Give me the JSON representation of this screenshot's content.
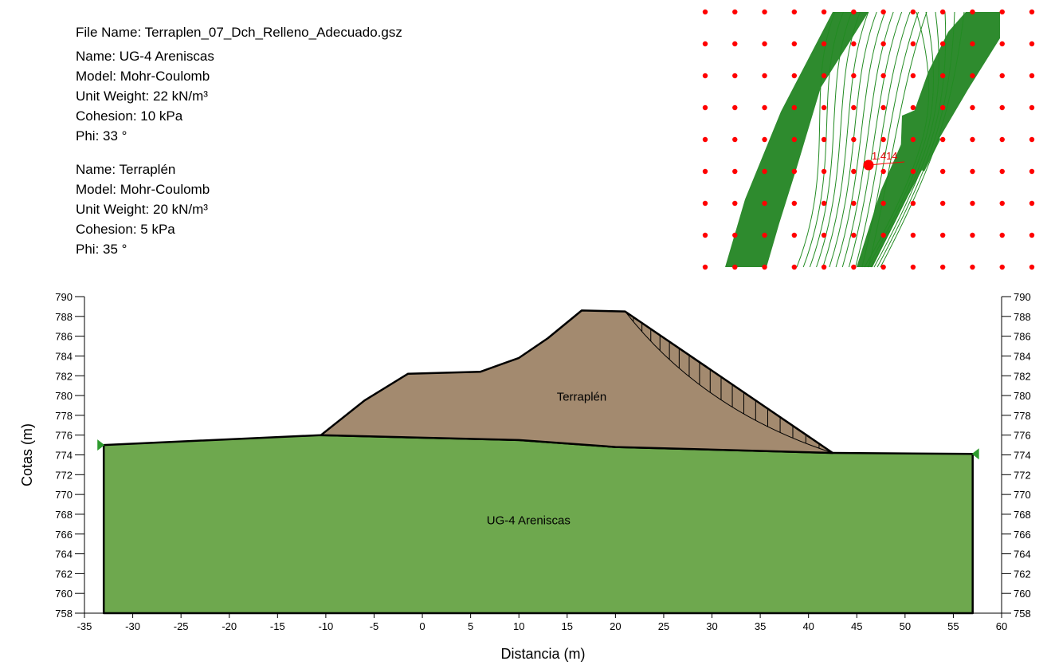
{
  "info": {
    "file_name": "File Name: Terraplen_07_Dch_Relleno_Adecuado.gsz",
    "materials": [
      {
        "name": "Name: UG-4 Areniscas",
        "model": "Model: Mohr-Coulomb",
        "unit_weight": "Unit Weight: 22 kN/m³",
        "cohesion": "Cohesion: 10 kPa",
        "phi": "Phi: 33 °"
      },
      {
        "name": "Name: Terraplén",
        "model": "Model: Mohr-Coulomb",
        "unit_weight": "Unit Weight: 20 kN/m³",
        "cohesion": "Cohesion: 5 kPa",
        "phi": "Phi: 35 °"
      }
    ]
  },
  "chart_data": {
    "type": "cross-section",
    "xlabel": "Distancia (m)",
    "ylabel": "Cotas (m)",
    "xlim": [
      -35,
      60
    ],
    "ylim": [
      758,
      790
    ],
    "x_ticks": [
      "-35",
      "-30",
      "-25",
      "-20",
      "-15",
      "-10",
      "-5",
      "0",
      "5",
      "10",
      "15",
      "20",
      "25",
      "30",
      "35",
      "40",
      "45",
      "50",
      "55",
      "60"
    ],
    "y_ticks": [
      "758",
      "760",
      "762",
      "764",
      "766",
      "768",
      "770",
      "772",
      "774",
      "776",
      "778",
      "780",
      "782",
      "784",
      "786",
      "788",
      "790"
    ],
    "regions": [
      {
        "label": "UG-4 Areniscas",
        "color": "#6ea84e",
        "points": [
          [
            -33,
            775
          ],
          [
            -10.5,
            776
          ],
          [
            10,
            775.5
          ],
          [
            20,
            774.8
          ],
          [
            42.5,
            774.2
          ],
          [
            57,
            774.1
          ],
          [
            57,
            758
          ],
          [
            -33,
            758
          ]
        ],
        "label_at": [
          11,
          767
        ]
      },
      {
        "label": "Terraplén",
        "color": "#a38a6f",
        "points": [
          [
            -10.5,
            776
          ],
          [
            -6,
            779.5
          ],
          [
            -1.5,
            782.2
          ],
          [
            6,
            782.4
          ],
          [
            10,
            783.8
          ],
          [
            13,
            785.8
          ],
          [
            16.5,
            788.6
          ],
          [
            21,
            788.5
          ],
          [
            42.5,
            774.2
          ],
          [
            20,
            774.8
          ],
          [
            10,
            775.5
          ]
        ],
        "label_at": [
          16.5,
          779.5
        ]
      }
    ],
    "slip_surface": {
      "entry": [
        21,
        788.5
      ],
      "exit": [
        42.5,
        774.2
      ],
      "control": [
        29,
        778.5
      ],
      "slices": 19
    },
    "boundary_markers": [
      [
        -33,
        775
      ],
      [
        57,
        774.1
      ]
    ],
    "grid": {
      "point_color": "#ff0000",
      "contour_color": "#228b22",
      "rows": 9,
      "cols": 12,
      "critical_factor": "1.414"
    }
  }
}
